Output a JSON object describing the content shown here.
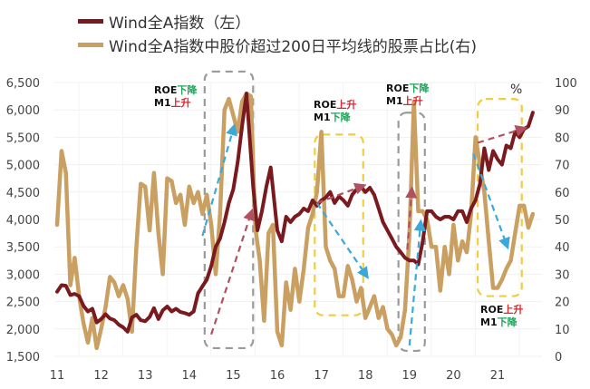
{
  "legend": {
    "items": [
      {
        "label": "Wind全A指数（左）",
        "color": "#7a1a1e"
      },
      {
        "label": "Wind全A指数中股价超过200日平均线的股票占比(右)",
        "color": "#c9a062"
      }
    ]
  },
  "percent_label": "%",
  "annotations": [
    {
      "line1_prefix": "ROE",
      "line1_suffix": "下降",
      "line1_color": "#22a35a",
      "line2_prefix": "M1",
      "line2_suffix": "上升",
      "line2_color": "#d9282f"
    },
    {
      "line1_prefix": "ROE",
      "line1_suffix": "上升",
      "line1_color": "#d9282f",
      "line2_prefix": "M1",
      "line2_suffix": "下降",
      "line2_color": "#22a35a"
    },
    {
      "line1_prefix": "ROE",
      "line1_suffix": "下降",
      "line1_color": "#22a35a",
      "line2_prefix": "M1",
      "line2_suffix": "上升",
      "line2_color": "#d9282f"
    },
    {
      "line1_prefix": "ROE",
      "line1_suffix": "上升",
      "line1_color": "#d9282f",
      "line2_prefix": "M1",
      "line2_suffix": "下降",
      "line2_color": "#22a35a"
    }
  ],
  "chart_data": {
    "type": "line",
    "title": "",
    "xlabel": "",
    "ylabel": "",
    "y2label": "%",
    "x_ticks": [
      "11",
      "12",
      "13",
      "14",
      "15",
      "16",
      "17",
      "18",
      "19",
      "20",
      "21"
    ],
    "y_left_ticks": [
      "6,500",
      "6,000",
      "5,500",
      "5,000",
      "4,500",
      "4,000",
      "3,500",
      "3,000",
      "2,500",
      "2,000",
      "1,500"
    ],
    "y_right_ticks": [
      "100",
      "90",
      "80",
      "70",
      "60",
      "50",
      "40",
      "30",
      "20",
      "10",
      "0"
    ],
    "ylim_left": [
      1500,
      6500
    ],
    "ylim_right": [
      0,
      100
    ],
    "xlim": [
      2011,
      2021.9
    ],
    "grid": true,
    "legend_position": "top",
    "series": [
      {
        "name": "Wind全A指数（左）",
        "axis": "left",
        "color": "#7a1a1e",
        "x": [
          2011.0,
          2011.1,
          2011.2,
          2011.3,
          2011.4,
          2011.5,
          2011.6,
          2011.7,
          2011.8,
          2011.9,
          2012.0,
          2012.1,
          2012.2,
          2012.3,
          2012.4,
          2012.5,
          2012.6,
          2012.7,
          2012.8,
          2012.9,
          2013.0,
          2013.1,
          2013.2,
          2013.3,
          2013.4,
          2013.5,
          2013.6,
          2013.7,
          2013.8,
          2013.9,
          2014.0,
          2014.1,
          2014.2,
          2014.3,
          2014.4,
          2014.5,
          2014.6,
          2014.7,
          2014.8,
          2014.9,
          2015.0,
          2015.1,
          2015.2,
          2015.3,
          2015.35,
          2015.45,
          2015.55,
          2015.65,
          2015.75,
          2015.85,
          2016.0,
          2016.1,
          2016.2,
          2016.3,
          2016.4,
          2016.5,
          2016.6,
          2016.7,
          2016.8,
          2016.9,
          2017.0,
          2017.1,
          2017.2,
          2017.3,
          2017.4,
          2017.5,
          2017.6,
          2017.7,
          2017.8,
          2017.9,
          2018.0,
          2018.1,
          2018.2,
          2018.3,
          2018.4,
          2018.5,
          2018.6,
          2018.7,
          2018.8,
          2018.9,
          2019.0,
          2019.1,
          2019.2,
          2019.3,
          2019.4,
          2019.5,
          2019.6,
          2019.7,
          2019.8,
          2019.9,
          2020.0,
          2020.1,
          2020.2,
          2020.3,
          2020.4,
          2020.5,
          2020.6,
          2020.7,
          2020.8,
          2020.9,
          2021.0,
          2021.1,
          2021.2,
          2021.3,
          2021.4,
          2021.5,
          2021.6,
          2021.7,
          2021.8
        ],
        "values": [
          2680,
          2800,
          2790,
          2620,
          2640,
          2600,
          2420,
          2320,
          2370,
          2120,
          2180,
          2270,
          2190,
          2160,
          2080,
          2030,
          1950,
          2210,
          2260,
          2160,
          2140,
          2220,
          2380,
          2180,
          2340,
          2410,
          2320,
          2370,
          2310,
          2290,
          2260,
          2320,
          2650,
          2780,
          2900,
          3150,
          3500,
          3650,
          3950,
          4300,
          4550,
          5050,
          5700,
          6300,
          5750,
          4600,
          3800,
          4150,
          4600,
          4950,
          3800,
          3600,
          4050,
          3950,
          4050,
          4100,
          4200,
          4150,
          4350,
          4250,
          4350,
          4400,
          4500,
          4300,
          4420,
          4350,
          4250,
          4450,
          4550,
          4600,
          4500,
          4580,
          4450,
          4200,
          3950,
          3800,
          3650,
          3500,
          3400,
          3300,
          3250,
          3250,
          3180,
          3600,
          4150,
          4150,
          4050,
          4000,
          4050,
          4050,
          4000,
          4150,
          4150,
          3950,
          4200,
          4350,
          4650,
          5300,
          4900,
          5250,
          5100,
          5000,
          5350,
          5300,
          5600,
          5500,
          5650,
          5700,
          5950
        ]
      },
      {
        "name": "Wind全A指数中股价超过200日平均线的股票占比(右)",
        "axis": "right",
        "color": "#c9a062",
        "x": [
          2011.0,
          2011.1,
          2011.2,
          2011.3,
          2011.4,
          2011.5,
          2011.6,
          2011.7,
          2011.8,
          2011.9,
          2012.0,
          2012.1,
          2012.2,
          2012.3,
          2012.4,
          2012.5,
          2012.6,
          2012.7,
          2012.8,
          2012.9,
          2013.0,
          2013.1,
          2013.2,
          2013.3,
          2013.4,
          2013.5,
          2013.6,
          2013.7,
          2013.8,
          2013.9,
          2014.0,
          2014.1,
          2014.2,
          2014.3,
          2014.4,
          2014.5,
          2014.6,
          2014.7,
          2014.8,
          2014.9,
          2015.0,
          2015.1,
          2015.2,
          2015.3,
          2015.4,
          2015.5,
          2015.6,
          2015.7,
          2015.8,
          2015.9,
          2016.0,
          2016.1,
          2016.2,
          2016.3,
          2016.4,
          2016.5,
          2016.6,
          2016.7,
          2016.8,
          2016.9,
          2017.0,
          2017.1,
          2017.2,
          2017.3,
          2017.4,
          2017.5,
          2017.6,
          2017.7,
          2017.8,
          2017.9,
          2018.0,
          2018.1,
          2018.2,
          2018.3,
          2018.4,
          2018.5,
          2018.6,
          2018.7,
          2018.8,
          2018.9,
          2019.0,
          2019.1,
          2019.2,
          2019.3,
          2019.4,
          2019.5,
          2019.6,
          2019.7,
          2019.8,
          2019.9,
          2020.0,
          2020.1,
          2020.2,
          2020.3,
          2020.4,
          2020.5,
          2020.6,
          2020.7,
          2020.8,
          2020.9,
          2021.0,
          2021.1,
          2021.2,
          2021.3,
          2021.4,
          2021.5,
          2021.6,
          2021.7,
          2021.8
        ],
        "values": [
          48,
          75,
          67,
          26,
          36,
          22,
          12,
          5,
          14,
          3,
          10,
          18,
          29,
          27,
          22,
          26,
          21,
          9,
          40,
          63,
          62,
          46,
          67,
          45,
          30,
          65,
          64,
          56,
          59,
          48,
          62,
          56,
          60,
          52,
          59,
          48,
          30,
          52,
          90,
          94,
          88,
          82,
          93,
          96,
          95,
          47,
          35,
          13,
          45,
          48,
          9,
          4,
          27,
          17,
          32,
          20,
          32,
          47,
          52,
          60,
          82,
          40,
          35,
          32,
          22,
          22,
          33,
          28,
          20,
          25,
          14,
          18,
          22,
          14,
          18,
          10,
          8,
          4,
          7,
          17,
          45,
          93,
          53,
          53,
          50,
          40,
          40,
          24,
          40,
          30,
          48,
          35,
          42,
          38,
          52,
          80,
          70,
          60,
          42,
          25,
          25,
          28,
          32,
          35,
          45,
          55,
          55,
          47,
          52
        ]
      }
    ],
    "overlays": {
      "dashed_boxes": [
        {
          "color": "#9a9a9a",
          "x0": 2014.35,
          "x1": 2015.45,
          "y0_pct": 3,
          "y1_pct": 104
        },
        {
          "color": "#f0cc40",
          "x0": 2016.85,
          "x1": 2017.95,
          "y0_pct": 15,
          "y1_pct": 81
        },
        {
          "color": "#9a9a9a",
          "x0": 2018.75,
          "x1": 2019.35,
          "y0_pct": 2,
          "y1_pct": 89
        },
        {
          "color": "#f0cc40",
          "x0": 2020.55,
          "x1": 2021.55,
          "y0_pct": 22,
          "y1_pct": 94
        }
      ],
      "arrows": [
        {
          "color": "#3aa9d9",
          "from": [
            2014.3,
            44
          ],
          "to": [
            2015.0,
            83
          ]
        },
        {
          "color": "#b05060",
          "from": [
            2014.5,
            8
          ],
          "to": [
            2015.4,
            52
          ]
        },
        {
          "color": "#3aa9d9",
          "from": [
            2016.9,
            56
          ],
          "to": [
            2018.0,
            30
          ]
        },
        {
          "color": "#b05060",
          "from": [
            2016.9,
            56
          ],
          "to": [
            2017.9,
            62
          ]
        },
        {
          "color": "#3aa9d9",
          "from": [
            2019.0,
            4
          ],
          "to": [
            2019.25,
            48
          ]
        },
        {
          "color": "#b05060",
          "from": [
            2018.95,
            39
          ],
          "to": [
            2019.05,
            60
          ]
        },
        {
          "color": "#3aa9d9",
          "from": [
            2020.45,
            74
          ],
          "to": [
            2021.2,
            41
          ]
        },
        {
          "color": "#b05060",
          "from": [
            2020.55,
            78
          ],
          "to": [
            2021.55,
            83
          ]
        }
      ]
    }
  }
}
